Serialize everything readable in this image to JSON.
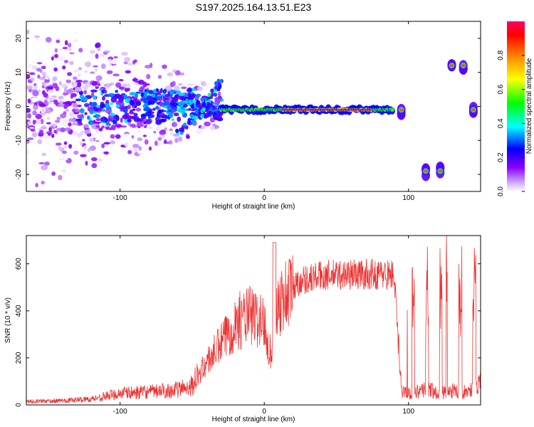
{
  "title": "S197.2025.164.13.51.E23",
  "chart_data": [
    {
      "type": "heatmap",
      "xlabel": "Height of straight line (km)",
      "ylabel": "Frequency (Hz)",
      "xlim": [
        -165,
        150
      ],
      "ylim": [
        -25,
        25
      ],
      "xticks": [
        -100,
        0,
        100
      ],
      "yticks": [
        -20,
        -10,
        0,
        10,
        20
      ],
      "grid": false,
      "colorbar": {
        "label": "Normalized spectral amplitude",
        "range": [
          0,
          1
        ],
        "ticks": [
          0.0,
          0.2,
          0.4,
          0.6,
          0.8
        ],
        "colormap": "rainbow",
        "colors": [
          "#ffffff",
          "#8b00ff",
          "#0000ff",
          "#00ffff",
          "#00ff00",
          "#ffff00",
          "#ff7f00",
          "#ff0000",
          "#ff0066"
        ]
      },
      "features": [
        {
          "label": "noise",
          "x": [
            -165,
            -30
          ],
          "y": [
            -25,
            25
          ],
          "amplitude": 0.15
        },
        {
          "label": "doppler_ramp",
          "points": [
            [
              -60,
              -8
            ],
            [
              -45,
              -2
            ],
            [
              -35,
              4
            ],
            [
              -30,
              8
            ]
          ],
          "amplitude": 0.45
        },
        {
          "label": "main_echo",
          "x": [
            -30,
            90
          ],
          "freq": -1,
          "peak_amplitude": 1.0
        },
        {
          "label": "late_echoes",
          "points": [
            [
              95,
              -1
            ],
            [
              112,
              -19
            ],
            [
              122,
              -19
            ],
            [
              130,
              12
            ],
            [
              138,
              12
            ],
            [
              145,
              -1
            ]
          ],
          "amplitude": 0.7
        }
      ]
    },
    {
      "type": "line",
      "xlabel": "Height of straight line (km)",
      "ylabel": "SNR (10 * v/v)",
      "xlim": [
        -165,
        150
      ],
      "ylim": [
        0,
        720
      ],
      "xticks": [
        -100,
        0,
        100
      ],
      "yticks": [
        0,
        200,
        400,
        600
      ],
      "grid": false,
      "color": "#ee3333",
      "envelope": [
        {
          "x": -165,
          "y": 15
        },
        {
          "x": -140,
          "y": 18
        },
        {
          "x": -120,
          "y": 25
        },
        {
          "x": -100,
          "y": 50
        },
        {
          "x": -80,
          "y": 55
        },
        {
          "x": -60,
          "y": 65
        },
        {
          "x": -50,
          "y": 85
        },
        {
          "x": -40,
          "y": 180
        },
        {
          "x": -30,
          "y": 260
        },
        {
          "x": -20,
          "y": 350
        },
        {
          "x": -10,
          "y": 380
        },
        {
          "x": 0,
          "y": 350
        },
        {
          "x": 5,
          "y": 200
        },
        {
          "x": 8,
          "y": 420
        },
        {
          "x": 15,
          "y": 470
        },
        {
          "x": 25,
          "y": 530
        },
        {
          "x": 40,
          "y": 550
        },
        {
          "x": 60,
          "y": 555
        },
        {
          "x": 80,
          "y": 555
        },
        {
          "x": 90,
          "y": 555
        },
        {
          "x": 95,
          "y": 60
        },
        {
          "x": 100,
          "y": 50
        },
        {
          "x": 110,
          "y": 60
        },
        {
          "x": 115,
          "y": 70
        },
        {
          "x": 120,
          "y": 50
        },
        {
          "x": 130,
          "y": 60
        },
        {
          "x": 140,
          "y": 55
        },
        {
          "x": 150,
          "y": 90
        }
      ]
    }
  ]
}
